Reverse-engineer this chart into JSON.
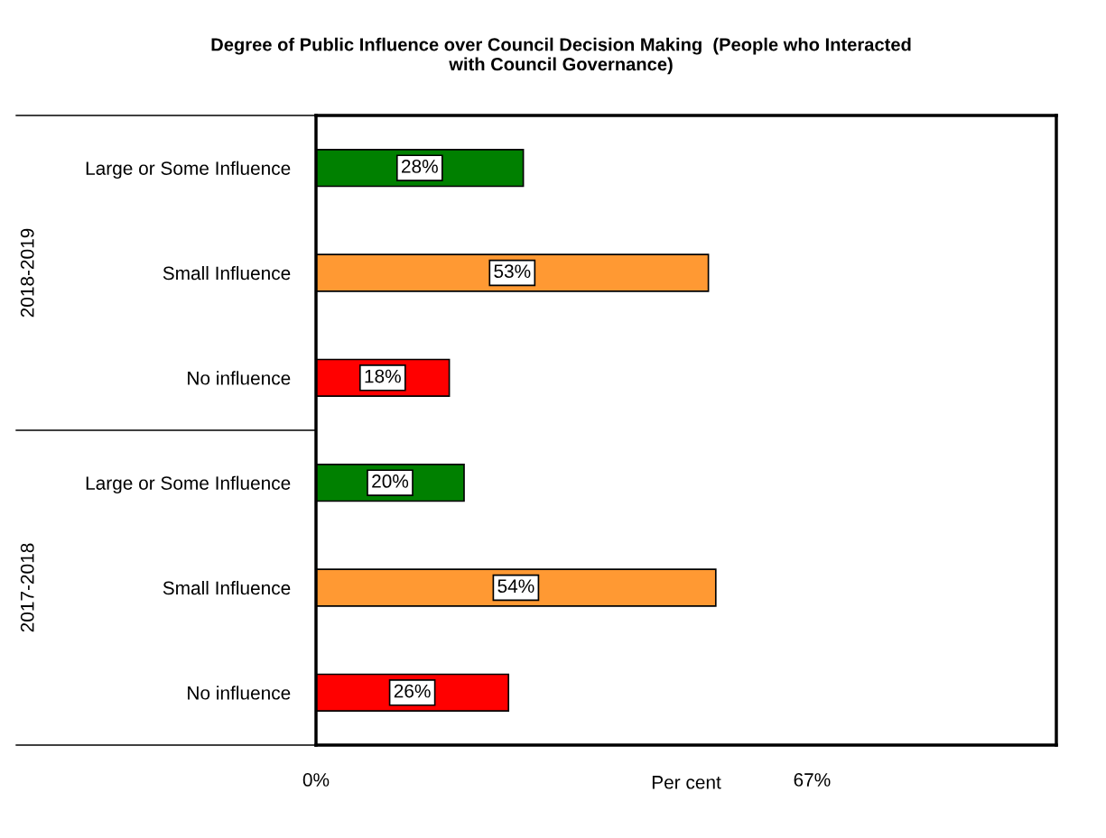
{
  "chart_data": {
    "type": "bar",
    "orientation": "horizontal",
    "title": "Degree of Public Influence over Council Decision Making  (People who Interacted\nwith Council Governance)",
    "xlabel": "Per cent",
    "categories": [
      "Large or Some Influence",
      "Small Influence",
      "No influence",
      "Large or Some Influence",
      "Small Influence",
      "No influence"
    ],
    "values": [
      28,
      53,
      18,
      20,
      54,
      26
    ],
    "colors": [
      "#008000",
      "#ff9933",
      "#ff0000",
      "#008000",
      "#ff9933",
      "#ff0000"
    ],
    "value_labels": [
      "28%",
      "53%",
      "18%",
      "20%",
      "54%",
      "26%"
    ],
    "annotations": [
      "2018-2019",
      "2017-2018"
    ],
    "xlim": [
      0,
      100
    ],
    "xticks": [
      {
        "value": 0,
        "label": "0%"
      },
      {
        "value": 67,
        "label": "67%"
      }
    ],
    "grid": false,
    "legend": false
  }
}
